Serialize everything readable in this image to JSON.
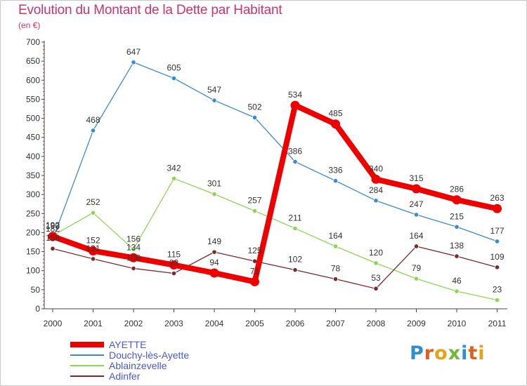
{
  "chart_data": {
    "type": "line",
    "title": "Evolution du Montant de la Dette par Habitant",
    "subtitle": "(en €)",
    "x": [
      "2000",
      "2001",
      "2002",
      "2003",
      "2004",
      "2005",
      "2006",
      "2007",
      "2008",
      "2009",
      "2010",
      "2011"
    ],
    "ylim": [
      0,
      700
    ],
    "yticks": [
      0,
      50,
      100,
      150,
      200,
      250,
      300,
      350,
      400,
      450,
      500,
      550,
      600,
      650,
      700
    ],
    "grid": false,
    "legend_position": "bottom-left",
    "series": [
      {
        "name": "AYETTE",
        "color": "#ee0000",
        "values": [
          190,
          152,
          134,
          115,
          94,
          71,
          534,
          485,
          340,
          315,
          286,
          263
        ]
      },
      {
        "name": "Douchy-lès-Ayette",
        "color": "#3a8ad0",
        "values": [
          182,
          468,
          647,
          605,
          547,
          502,
          386,
          336,
          284,
          247,
          215,
          177
        ]
      },
      {
        "name": "Ablainzevelle",
        "color": "#8dd654",
        "values": [
          192,
          252,
          156,
          342,
          301,
          257,
          211,
          164,
          120,
          79,
          46,
          23
        ]
      },
      {
        "name": "Adinfer",
        "color": "#7a2a2a",
        "values": [
          158,
          131,
          106,
          93,
          149,
          125,
          102,
          78,
          53,
          164,
          138,
          109
        ]
      }
    ]
  },
  "header": {
    "title": "Evolution du Montant de la Dette par Habitant",
    "unit": "(en €)"
  },
  "legend": {
    "items": [
      {
        "label": "AYETTE",
        "color": "#ee0000"
      },
      {
        "label": "Douchy-lès-Ayette",
        "color": "#3a8ad0"
      },
      {
        "label": "Ablainzevelle",
        "color": "#8dd654"
      },
      {
        "label": "Adinfer",
        "color": "#7a2a2a"
      }
    ]
  },
  "brand": {
    "logo_letters": [
      "P",
      "r",
      "o",
      "x",
      "i",
      "t",
      "i"
    ]
  }
}
